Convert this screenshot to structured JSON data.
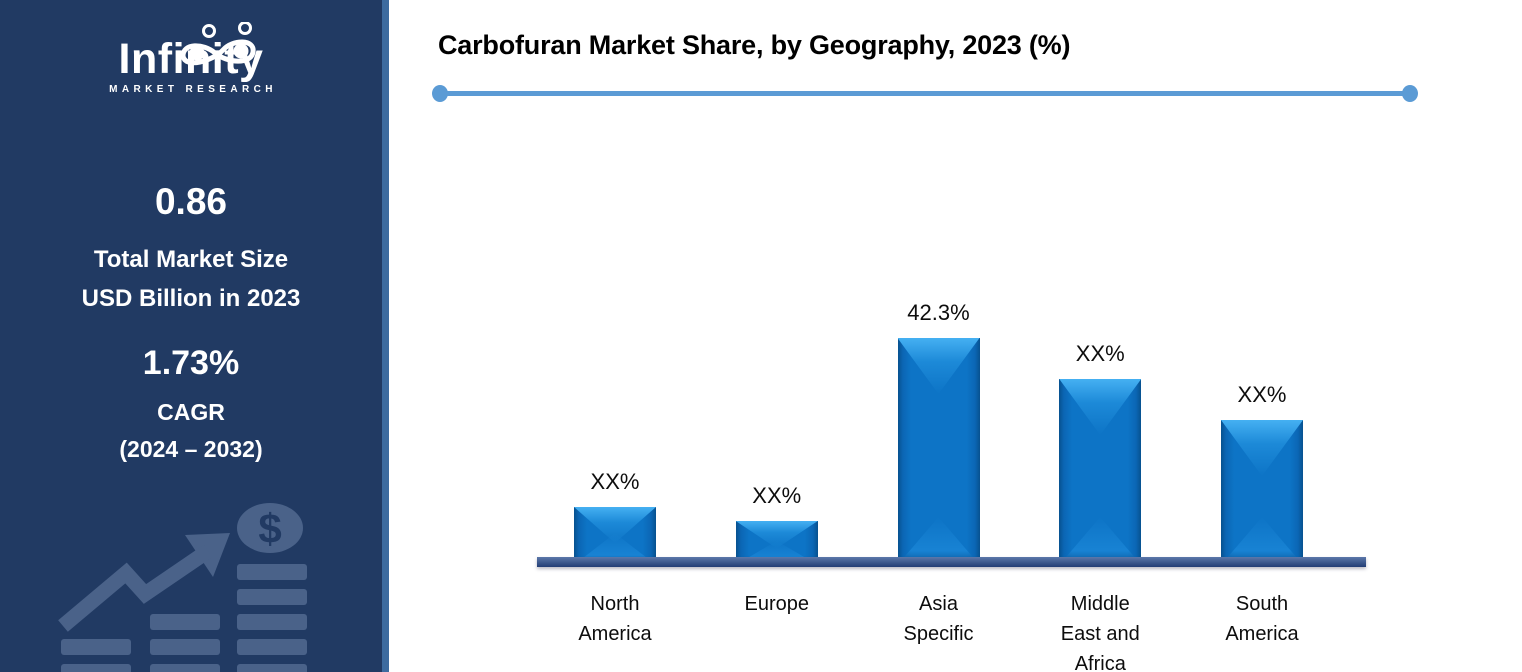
{
  "sidebar": {
    "logo": {
      "name": "Infinity",
      "tagline": "MARKET RESEARCH"
    },
    "market_size": {
      "value": "0.86",
      "label_line1": "Total Market Size",
      "label_line2": "USD Billion in 2023"
    },
    "cagr": {
      "value": "1.73%",
      "label": "CAGR",
      "period": "(2024 – 2032)"
    },
    "colors": {
      "background": "#213a63",
      "border": "#3d6b9f",
      "graphic": "#4a6289"
    }
  },
  "chart_data": {
    "type": "bar",
    "title": "Carbofuran Market Share, by Geography, 2023 (%)",
    "categories": [
      "North America",
      "Europe",
      "Asia Specific",
      "Middle East and Africa",
      "South America"
    ],
    "values": [
      10.8,
      8.2,
      42.3,
      34.7,
      27
    ],
    "value_labels": [
      "XX%",
      "XX%",
      "42.3%",
      "XX%",
      "XX%"
    ],
    "xlabel": "",
    "ylabel": "",
    "ylim": [
      0,
      45
    ],
    "grid": false,
    "legend": false,
    "bar_color": "#0d74c6",
    "bar_highlight": "#45b0f2",
    "axis_color": "#2e5292",
    "accent_line_color": "#5b9bd5"
  }
}
